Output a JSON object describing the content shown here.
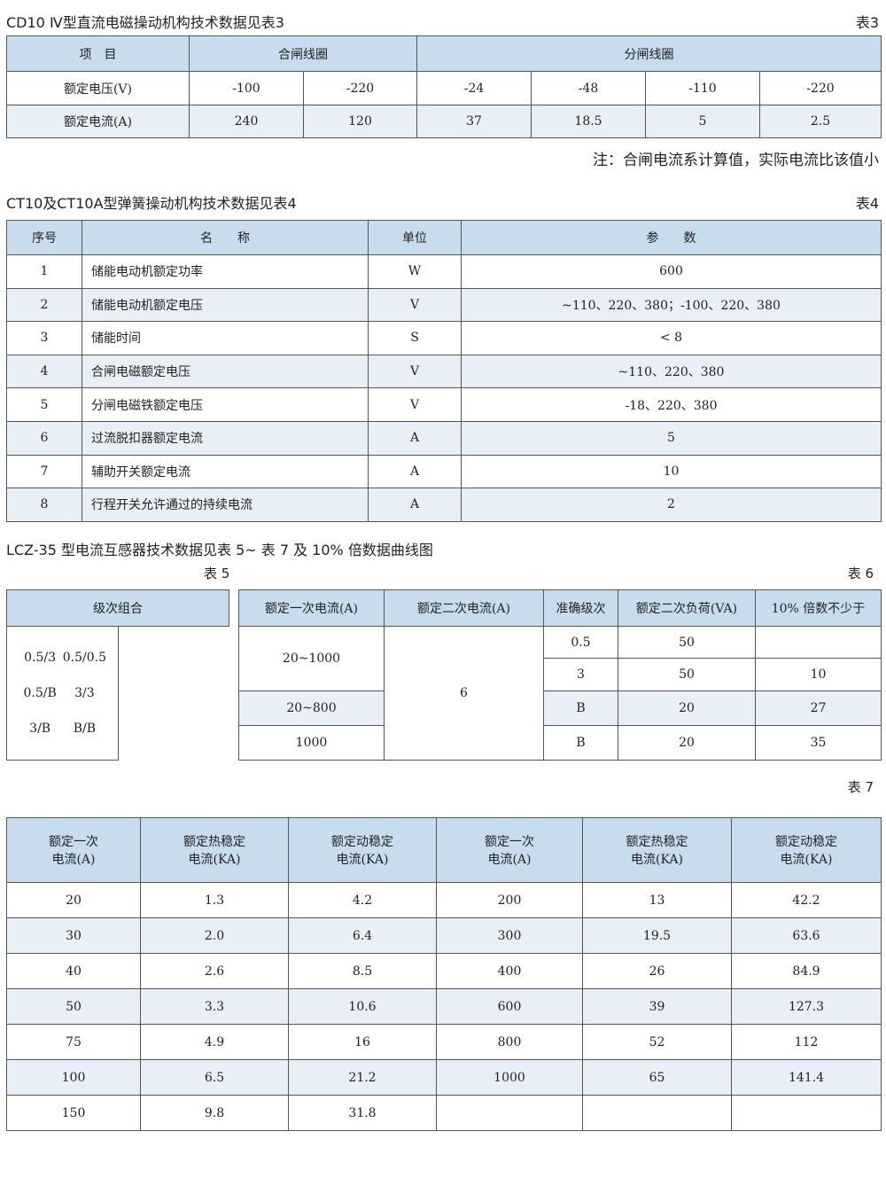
{
  "t3": {
    "title": "CD10 Ⅳ型直流电磁操动机构技术数据见表3",
    "label": "表3",
    "h": [
      "项　目",
      "合闸线圈",
      "分闸线圈"
    ],
    "rows": [
      {
        "name": "额定电压(V)",
        "v": [
          "-100",
          "-220",
          "-24",
          "-48",
          "-110",
          "-220"
        ]
      },
      {
        "name": "额定电流(A)",
        "v": [
          "240",
          "120",
          "37",
          "18.5",
          "5",
          "2.5"
        ]
      }
    ],
    "note": "注：合闸电流系计算值，实际电流比该值小"
  },
  "t4": {
    "title": "CT10及CT10A型弹簧操动机构技术数据见表4",
    "label": "表4",
    "h": [
      "序号",
      "名　　称",
      "单位",
      "参　　数"
    ],
    "rows": [
      [
        "1",
        "储能电动机额定功率",
        "W",
        "600"
      ],
      [
        "2",
        "储能电动机额定电压",
        "V",
        "~110、220、380；-100、220、380"
      ],
      [
        "3",
        "储能时间",
        "S",
        "< 8"
      ],
      [
        "4",
        "合闸电磁额定电压",
        "V",
        "~110、220、380"
      ],
      [
        "5",
        "分闸电磁铁额定电压",
        "V",
        "-18、220、380"
      ],
      [
        "6",
        "过流脱扣器额定电流",
        "A",
        "5"
      ],
      [
        "7",
        "辅助开关额定电流",
        "A",
        "10"
      ],
      [
        "8",
        "行程开关允许通过的持续电流",
        "A",
        "2"
      ]
    ]
  },
  "section": "LCZ-35 型电流互感器技术数据见表 5~ 表 7 及 10% 倍数据曲线图",
  "t5": {
    "label": "表 5",
    "h": "级次组合",
    "v": [
      "0.5/3",
      "0.5/0.5",
      "0.5/B",
      "3/3",
      "3/B",
      "B/B"
    ]
  },
  "t6": {
    "label": "表 6",
    "h": [
      "额定一次电流(A)",
      "额定二次电流(A)",
      "准确级次",
      "额定二次负荷(VA)",
      "10% 倍数不少于"
    ],
    "primary": [
      "20~1000",
      "20~800",
      "1000"
    ],
    "secondary": "6",
    "rows": [
      [
        "0.5",
        "50",
        ""
      ],
      [
        "3",
        "50",
        "10"
      ],
      [
        "B",
        "20",
        "27"
      ],
      [
        "B",
        "20",
        "35"
      ]
    ]
  },
  "t7": {
    "label": "表 7",
    "h": [
      [
        "额定一次",
        "电流(A)"
      ],
      [
        "额定热稳定",
        "电流(KA)"
      ],
      [
        "额定动稳定",
        "电流(KA)"
      ],
      [
        "额定一次",
        "电流(A)"
      ],
      [
        "额定热稳定",
        "电流(KA)"
      ],
      [
        "额定动稳定",
        "电流(KA)"
      ]
    ],
    "rows": [
      [
        "20",
        "1.3",
        "4.2",
        "200",
        "13",
        "42.2"
      ],
      [
        "30",
        "2.0",
        "6.4",
        "300",
        "19.5",
        "63.6"
      ],
      [
        "40",
        "2.6",
        "8.5",
        "400",
        "26",
        "84.9"
      ],
      [
        "50",
        "3.3",
        "10.6",
        "600",
        "39",
        "127.3"
      ],
      [
        "75",
        "4.9",
        "16",
        "800",
        "52",
        "112"
      ],
      [
        "100",
        "6.5",
        "21.2",
        "1000",
        "65",
        "141.4"
      ],
      [
        "150",
        "9.8",
        "31.8",
        "",
        "",
        ""
      ]
    ]
  },
  "colors": {
    "header": "#c8dcee",
    "alt_row": "#e9eff6"
  }
}
